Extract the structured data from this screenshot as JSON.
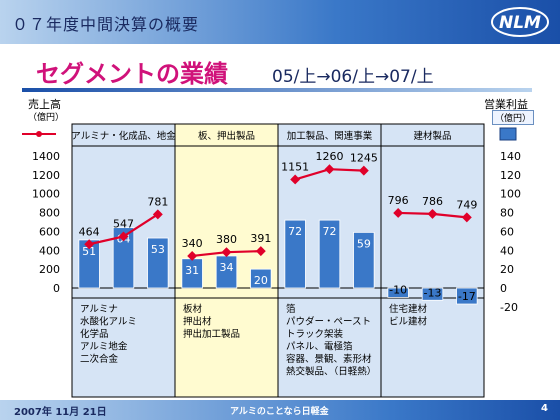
{
  "header": {
    "title": "０７年度中間決算の概要"
  },
  "slide": {
    "title": "セグメントの業績",
    "period": "05/上→06/上→07/上"
  },
  "footer": {
    "date": "2007年 11月 21日",
    "center": "アルミのことなら日軽金",
    "page": "4"
  },
  "colors": {
    "bar": "#3a78c8",
    "line": "#e0002a",
    "panel_blue": "#d6e4f5",
    "panel_yellow": "#fffbd0"
  },
  "chart_data": {
    "type": "bar",
    "left_axis": {
      "title": "売上高",
      "unit": "（億円）",
      "range": [
        0,
        1400
      ],
      "ticks": [
        "0",
        "200",
        "400",
        "600",
        "800",
        "1000",
        "1200",
        "1400"
      ]
    },
    "right_axis": {
      "title": "営業利益",
      "unit": "（億円）",
      "range": [
        -20,
        140
      ],
      "ticks": [
        "-20",
        "0",
        "20",
        "40",
        "60",
        "80",
        "100",
        "120",
        "140"
      ]
    },
    "segments": [
      {
        "name": "アルミナ・化成品、地金",
        "sales": [
          464,
          547,
          781
        ],
        "profit": [
          51,
          64,
          53
        ],
        "products": [
          "アルミナ",
          "水酸化アルミ",
          "化学品",
          "アルミ地金",
          "二次合金"
        ]
      },
      {
        "name": "板、押出製品",
        "sales": [
          340,
          380,
          391
        ],
        "profit": [
          31,
          34,
          20
        ],
        "products": [
          "板材",
          "押出材",
          "押出加工製品"
        ]
      },
      {
        "name": "加工製品、関連事業",
        "sales": [
          1151,
          1260,
          1245
        ],
        "profit": [
          72,
          72,
          59
        ],
        "products": [
          "箔",
          "パウダー・ペースト",
          "トラック架装",
          "パネル、電極箔",
          "容器、景観、素形材",
          "熱交製品、（日軽熱）"
        ]
      },
      {
        "name": "建材製品",
        "sales": [
          796,
          786,
          749
        ],
        "profit": [
          -10,
          -13,
          -17
        ],
        "products": [
          "住宅建材",
          "ビル建材"
        ]
      }
    ]
  }
}
